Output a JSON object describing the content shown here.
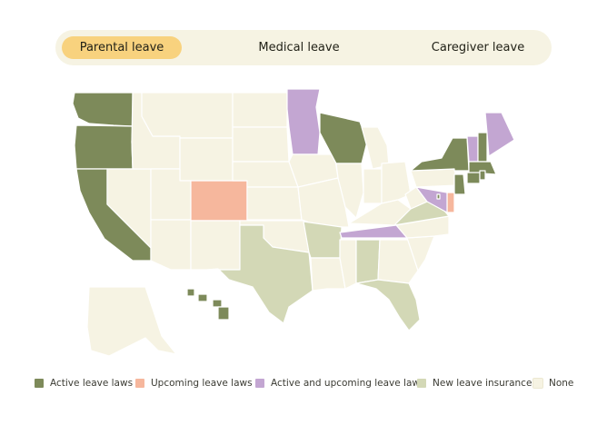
{
  "tabs": [
    {
      "label": "Parental leave",
      "active": true
    },
    {
      "label": "Medical leave",
      "active": false
    },
    {
      "label": "Caregiver leave",
      "active": false
    }
  ],
  "colors": {
    "active": "#7d8a5a",
    "upcoming": "#f6b79d",
    "active_upcoming": "#c3a6d2",
    "insurance": "#d3d8b6",
    "none": "#f6f3e3",
    "border": "#ffffff"
  },
  "legend": [
    {
      "key": "active",
      "label": "Active leave laws"
    },
    {
      "key": "upcoming",
      "label": "Upcoming leave laws"
    },
    {
      "key": "active_upcoming",
      "label": "Active and upcoming leave laws"
    },
    {
      "key": "insurance",
      "label": "New leave insurance"
    },
    {
      "key": "none",
      "label": "None"
    }
  ],
  "state_status": {
    "WA": "active",
    "OR": "active",
    "CA": "active",
    "HI": "active",
    "WI": "active",
    "NY": "active",
    "NJ": "active",
    "CT": "active",
    "MA": "active",
    "RI": "active",
    "NH": "active",
    "DC": "active",
    "CO": "upcoming",
    "DE": "upcoming",
    "MN": "active_upcoming",
    "ME": "active_upcoming",
    "VT": "active_upcoming",
    "MD": "active_upcoming",
    "TN": "active_upcoming",
    "TX": "insurance",
    "AR": "insurance",
    "AL": "insurance",
    "VA": "insurance",
    "FL": "insurance"
  }
}
